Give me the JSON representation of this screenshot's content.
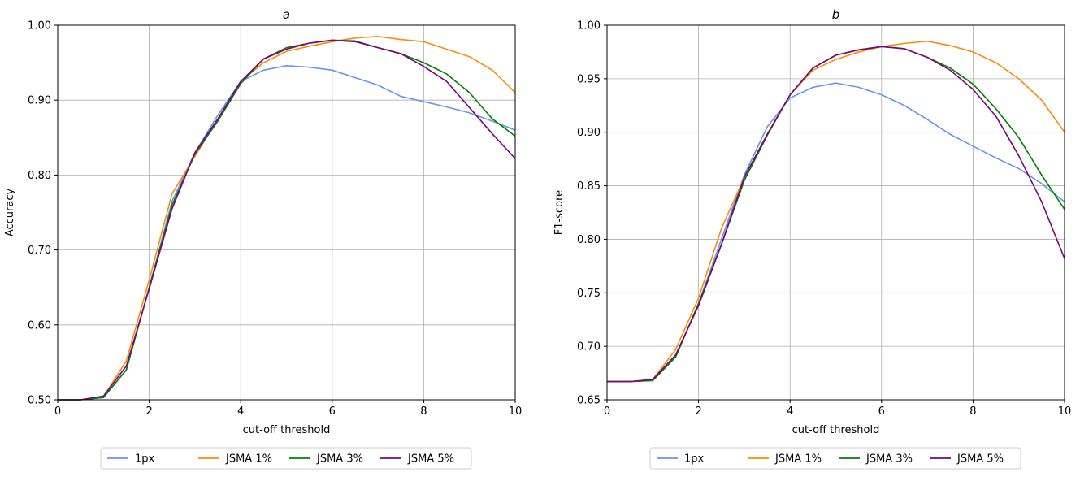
{
  "chart_data": [
    {
      "type": "line",
      "title": "a",
      "xlabel": "cut-off threshold",
      "ylabel": "Accuracy",
      "xlim": [
        0,
        10
      ],
      "ylim": [
        0.5,
        1.0
      ],
      "xticks": [
        0,
        2,
        4,
        6,
        8,
        10
      ],
      "xtick_labels": [
        "0",
        "2",
        "4",
        "6",
        "8",
        "10"
      ],
      "yticks": [
        0.5,
        0.6,
        0.7,
        0.8,
        0.9,
        1.0
      ],
      "ytick_labels": [
        "0.50",
        "0.60",
        "0.70",
        "0.80",
        "0.90",
        "1.00"
      ],
      "grid": true,
      "legend_position": "below",
      "x": [
        0,
        0.5,
        1.0,
        1.5,
        2.0,
        2.5,
        3.0,
        3.5,
        4.0,
        4.5,
        5.0,
        5.5,
        6.0,
        6.5,
        7.0,
        7.5,
        8.0,
        8.5,
        9.0,
        9.5,
        10.0
      ],
      "series": [
        {
          "name": "1px",
          "color": "#6495ed",
          "values": [
            0.5,
            0.5,
            0.503,
            0.54,
            0.65,
            0.765,
            0.83,
            0.88,
            0.925,
            0.94,
            0.946,
            0.944,
            0.94,
            0.93,
            0.92,
            0.905,
            0.898,
            0.891,
            0.883,
            0.872,
            0.86
          ]
        },
        {
          "name": "JSMA 1%",
          "color": "#ff8c00",
          "values": [
            0.5,
            0.5,
            0.504,
            0.552,
            0.66,
            0.775,
            0.825,
            0.875,
            0.925,
            0.95,
            0.965,
            0.972,
            0.978,
            0.983,
            0.985,
            0.981,
            0.978,
            0.968,
            0.958,
            0.94,
            0.91
          ]
        },
        {
          "name": "JSMA 3%",
          "color": "#008000",
          "values": [
            0.5,
            0.5,
            0.503,
            0.54,
            0.65,
            0.76,
            0.828,
            0.872,
            0.922,
            0.955,
            0.97,
            0.976,
            0.98,
            0.979,
            0.97,
            0.962,
            0.95,
            0.935,
            0.91,
            0.875,
            0.852
          ]
        },
        {
          "name": "JSMA 5%",
          "color": "#800080",
          "values": [
            0.5,
            0.5,
            0.505,
            0.545,
            0.648,
            0.755,
            0.83,
            0.875,
            0.925,
            0.955,
            0.968,
            0.976,
            0.98,
            0.978,
            0.97,
            0.962,
            0.945,
            0.925,
            0.89,
            0.855,
            0.822
          ]
        }
      ]
    },
    {
      "type": "line",
      "title": "b",
      "xlabel": "cut-off threshold",
      "ylabel": "F1-score",
      "xlim": [
        0,
        10
      ],
      "ylim": [
        0.65,
        1.0
      ],
      "xticks": [
        0,
        2,
        4,
        6,
        8,
        10
      ],
      "xtick_labels": [
        "0",
        "2",
        "4",
        "6",
        "8",
        "10"
      ],
      "yticks": [
        0.65,
        0.7,
        0.75,
        0.8,
        0.85,
        0.9,
        0.95,
        1.0
      ],
      "ytick_labels": [
        "0.65",
        "0.70",
        "0.75",
        "0.80",
        "0.85",
        "0.90",
        "0.95",
        "1.00"
      ],
      "grid": true,
      "legend_position": "below",
      "x": [
        0,
        0.5,
        1.0,
        1.5,
        2.0,
        2.5,
        3.0,
        3.5,
        4.0,
        4.5,
        5.0,
        5.5,
        6.0,
        6.5,
        7.0,
        7.5,
        8.0,
        8.5,
        9.0,
        9.5,
        10.0
      ],
      "series": [
        {
          "name": "1px",
          "color": "#6495ed",
          "values": [
            0.667,
            0.667,
            0.668,
            0.69,
            0.74,
            0.8,
            0.86,
            0.905,
            0.932,
            0.942,
            0.946,
            0.942,
            0.935,
            0.925,
            0.912,
            0.898,
            0.887,
            0.876,
            0.866,
            0.852,
            0.835
          ]
        },
        {
          "name": "JSMA 1%",
          "color": "#ff8c00",
          "values": [
            0.667,
            0.667,
            0.669,
            0.697,
            0.745,
            0.81,
            0.858,
            0.898,
            0.935,
            0.958,
            0.968,
            0.975,
            0.98,
            0.983,
            0.985,
            0.981,
            0.975,
            0.965,
            0.95,
            0.93,
            0.9
          ]
        },
        {
          "name": "JSMA 3%",
          "color": "#008000",
          "values": [
            0.667,
            0.667,
            0.668,
            0.69,
            0.74,
            0.795,
            0.855,
            0.897,
            0.935,
            0.96,
            0.972,
            0.977,
            0.98,
            0.978,
            0.97,
            0.96,
            0.945,
            0.922,
            0.895,
            0.86,
            0.828
          ]
        },
        {
          "name": "JSMA 5%",
          "color": "#800080",
          "values": [
            0.667,
            0.667,
            0.669,
            0.692,
            0.738,
            0.795,
            0.858,
            0.898,
            0.935,
            0.96,
            0.972,
            0.977,
            0.98,
            0.978,
            0.97,
            0.958,
            0.94,
            0.915,
            0.878,
            0.835,
            0.782
          ]
        }
      ]
    }
  ],
  "legend": {
    "entries": [
      {
        "name": "1px",
        "color": "#6495ed"
      },
      {
        "name": "JSMA 1%",
        "color": "#ff8c00"
      },
      {
        "name": "JSMA 3%",
        "color": "#008000"
      },
      {
        "name": "JSMA 5%",
        "color": "#800080"
      }
    ]
  }
}
